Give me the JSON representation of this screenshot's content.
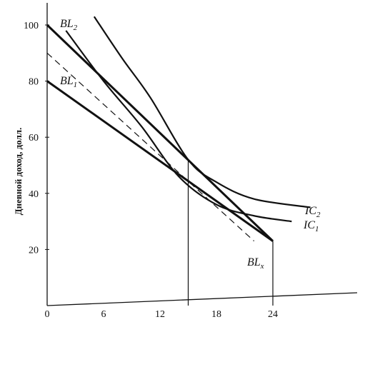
{
  "chart_data": {
    "type": "line",
    "ylabel": "Дневной доход, долл.",
    "xlim": [
      0,
      24
    ],
    "ylim": [
      0,
      100
    ],
    "x_ticks": [
      "0",
      "6",
      "12",
      "18",
      "24"
    ],
    "y_ticks": [
      "20",
      "40",
      "60",
      "80",
      "100"
    ],
    "series": [
      {
        "name": "BL1",
        "label": "BL",
        "sub": "1",
        "style": "solid",
        "points": [
          [
            0,
            80
          ],
          [
            24,
            23
          ]
        ]
      },
      {
        "name": "BL2",
        "label": "BL",
        "sub": "2",
        "style": "solid",
        "points": [
          [
            0,
            100
          ],
          [
            24,
            23
          ]
        ]
      },
      {
        "name": "BLx",
        "label": "BL",
        "sub": "x",
        "style": "dashed",
        "points": [
          [
            0,
            90
          ],
          [
            22,
            23
          ]
        ]
      },
      {
        "name": "IC1",
        "label": "IC",
        "sub": "1",
        "style": "solid",
        "points": [
          [
            2,
            98
          ],
          [
            6,
            80
          ],
          [
            10,
            64
          ],
          [
            14,
            46
          ],
          [
            18,
            36
          ],
          [
            22,
            32
          ],
          [
            26,
            30
          ]
        ]
      },
      {
        "name": "IC2",
        "label": "IC",
        "sub": "2",
        "style": "solid",
        "points": [
          [
            5,
            103
          ],
          [
            8,
            88
          ],
          [
            11,
            74
          ],
          [
            15,
            52
          ],
          [
            18,
            44
          ],
          [
            22,
            38
          ],
          [
            28,
            35
          ]
        ]
      }
    ],
    "verticals": [
      {
        "x": 15,
        "y": 52
      },
      {
        "x": 24,
        "y": 23
      }
    ]
  }
}
